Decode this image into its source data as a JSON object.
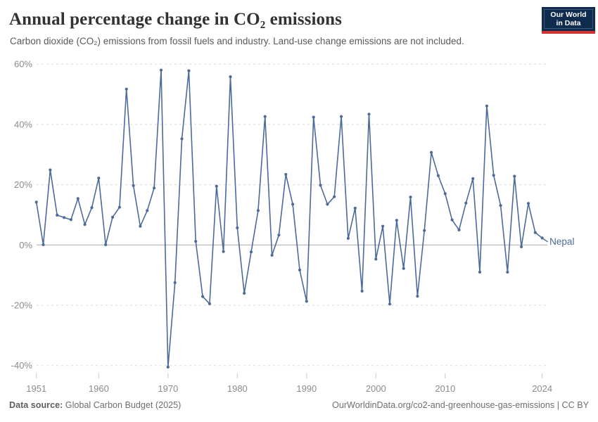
{
  "header": {
    "title": "Annual percentage change in CO₂ emissions",
    "subtitle": "Carbon dioxide (CO₂) emissions from fossil fuels and industry. Land-use change emissions are not included.",
    "logo": {
      "line1": "Our World",
      "line2": "in Data"
    }
  },
  "chart_data": {
    "type": "line",
    "title": "Annual percentage change in CO₂ emissions",
    "entity_label": "Nepal",
    "series": [
      {
        "name": "Nepal",
        "color": "#4c6a9c",
        "years": [
          1951,
          1952,
          1953,
          1954,
          1955,
          1956,
          1957,
          1958,
          1959,
          1960,
          1961,
          1962,
          1963,
          1964,
          1965,
          1966,
          1967,
          1968,
          1969,
          1970,
          1971,
          1972,
          1973,
          1974,
          1975,
          1976,
          1977,
          1978,
          1979,
          1980,
          1981,
          1982,
          1983,
          1984,
          1985,
          1986,
          1987,
          1988,
          1989,
          1990,
          1991,
          1992,
          1993,
          1994,
          1995,
          1996,
          1997,
          1998,
          1999,
          2000,
          2001,
          2002,
          2003,
          2004,
          2005,
          2006,
          2007,
          2008,
          2009,
          2010,
          2011,
          2012,
          2013,
          2014,
          2015,
          2016,
          2017,
          2018,
          2019,
          2020,
          2021,
          2022,
          2023,
          2024
        ],
        "values": [
          14.2,
          0.1,
          24.9,
          9.9,
          9.1,
          8.4,
          15.4,
          6.8,
          12.4,
          22.2,
          0.1,
          9.2,
          12.5,
          51.7,
          19.7,
          6.2,
          11.4,
          18.9,
          58,
          -40.5,
          -12.5,
          35.2,
          57.8,
          1.2,
          -17.1,
          -19.5,
          19.5,
          -2.2,
          55.8,
          5.7,
          -16,
          -2.3,
          11.4,
          42.6,
          -3.4,
          3.3,
          23.4,
          13.5,
          -8.3,
          -18.7,
          42.4,
          19.8,
          13.5,
          16,
          42.6,
          2.2,
          12.2,
          -15.3,
          43.4,
          -4.7,
          6.2,
          -19.6,
          8.2,
          -7.8,
          15.9,
          -17,
          4.8,
          30.7,
          23,
          17,
          8.3,
          5,
          13.9,
          22,
          -9,
          46.1,
          23.1,
          13.1,
          -9,
          22.8,
          -0.6,
          13.8,
          4.1,
          2.3
        ]
      }
    ],
    "x_axis": {
      "ticks": [
        "1951",
        "1960",
        "1970",
        "1980",
        "1990",
        "2000",
        "2010",
        "2024"
      ],
      "range": [
        1951,
        2024
      ]
    },
    "y_axis": {
      "ticks": [
        {
          "label": "60%",
          "value": 60
        },
        {
          "label": "40%",
          "value": 40
        },
        {
          "label": "20%",
          "value": 20
        },
        {
          "label": "0%",
          "value": 0
        },
        {
          "label": "-20%",
          "value": -20
        },
        {
          "label": "-40%",
          "value": -40
        }
      ],
      "range": [
        -40,
        60
      ],
      "unit": "%"
    },
    "grid": true,
    "legend_position": "end-of-line"
  },
  "colors": {
    "line": "#4c6a9c",
    "grid": "#dadada",
    "zero_line": "#a8a8a8",
    "axis_text": "#8b8b8b",
    "tick_mark": "#c9c9c9",
    "logo_bg": "#0f2b4d",
    "logo_red": "#d5342c"
  },
  "footer": {
    "datasource_label": "Data source:",
    "datasource_value": " Global Carbon Budget (2025)",
    "link": "OurWorldinData.org/co2-and-greenhouse-gas-emissions",
    "separator": " | ",
    "license": "CC BY"
  }
}
